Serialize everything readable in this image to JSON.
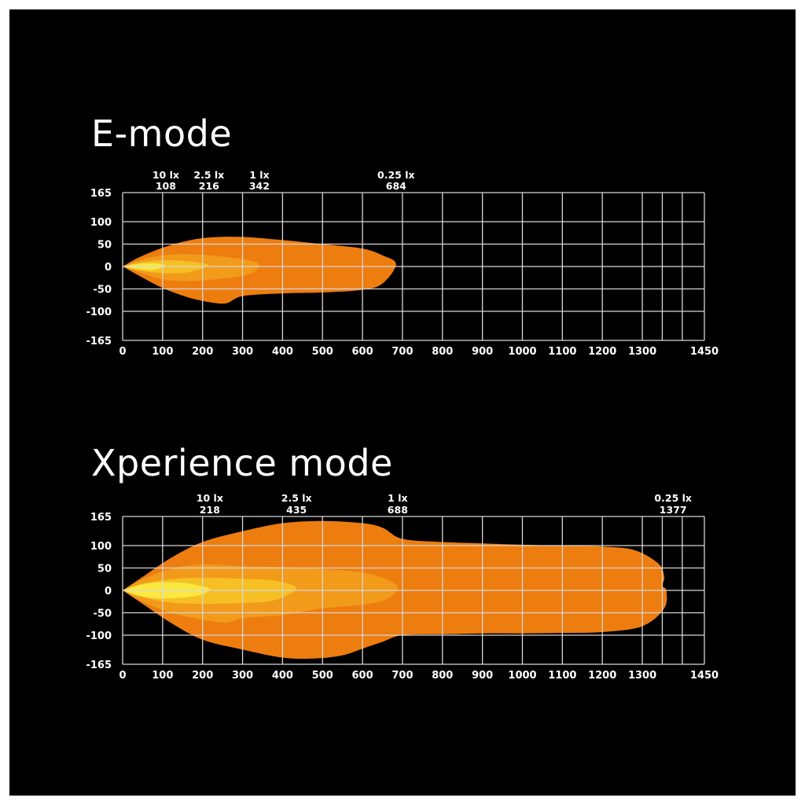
{
  "chart_data": [
    {
      "type": "area",
      "title": "E-mode",
      "xlim": [
        0,
        1450
      ],
      "ylim": [
        -165,
        165
      ],
      "x_ticks": [
        0,
        100,
        200,
        300,
        400,
        500,
        600,
        700,
        800,
        900,
        1000,
        1100,
        1200,
        1300,
        1450
      ],
      "y_ticks": [
        165,
        100,
        50,
        0,
        -50,
        -100,
        -165
      ],
      "grid": true,
      "lux_markers": [
        {
          "lux": "10 lx",
          "distance": "108",
          "x": 108
        },
        {
          "lux": "2.5 lx",
          "distance": "216",
          "x": 216
        },
        {
          "lux": "1 lx",
          "distance": "342",
          "x": 342
        },
        {
          "lux": "0.25 lx",
          "distance": "684",
          "x": 684
        }
      ],
      "zones": [
        {
          "level": "0.25 lx",
          "color": "#ee7d10",
          "top": [
            [
              0,
              0
            ],
            [
              40,
              20
            ],
            [
              100,
              42
            ],
            [
              160,
              57
            ],
            [
              220,
              65
            ],
            [
              300,
              66
            ],
            [
              400,
              59
            ],
            [
              500,
              50
            ],
            [
              600,
              40
            ],
            [
              650,
              25
            ],
            [
              684,
              5
            ]
          ],
          "bottom": [
            [
              0,
              0
            ],
            [
              40,
              -20
            ],
            [
              100,
              -48
            ],
            [
              160,
              -68
            ],
            [
              220,
              -80
            ],
            [
              260,
              -82
            ],
            [
              300,
              -66
            ],
            [
              400,
              -60
            ],
            [
              500,
              -58
            ],
            [
              600,
              -52
            ],
            [
              650,
              -38
            ],
            [
              684,
              -8
            ]
          ]
        },
        {
          "level": "1 lx",
          "color": "#f29a1a",
          "top": [
            [
              0,
              0
            ],
            [
              50,
              16
            ],
            [
              110,
              26
            ],
            [
              180,
              27
            ],
            [
              260,
              21
            ],
            [
              320,
              13
            ],
            [
              342,
              3
            ]
          ],
          "bottom": [
            [
              0,
              0
            ],
            [
              50,
              -16
            ],
            [
              110,
              -30
            ],
            [
              180,
              -32
            ],
            [
              260,
              -26
            ],
            [
              320,
              -16
            ],
            [
              342,
              -3
            ]
          ]
        },
        {
          "level": "2.5 lx",
          "color": "#f6c024",
          "top": [
            [
              0,
              0
            ],
            [
              50,
              10
            ],
            [
              110,
              14
            ],
            [
              170,
              11
            ],
            [
              216,
              3
            ]
          ],
          "bottom": [
            [
              0,
              0
            ],
            [
              50,
              -10
            ],
            [
              110,
              -15
            ],
            [
              170,
              -12
            ],
            [
              216,
              -3
            ]
          ]
        },
        {
          "level": "10 lx",
          "color": "#fbe840",
          "top": [
            [
              0,
              0
            ],
            [
              40,
              6
            ],
            [
              80,
              7
            ],
            [
              108,
              2
            ]
          ],
          "bottom": [
            [
              0,
              0
            ],
            [
              40,
              -6
            ],
            [
              80,
              -7
            ],
            [
              108,
              -2
            ]
          ]
        }
      ]
    },
    {
      "type": "area",
      "title": "Xperience mode",
      "xlim": [
        0,
        1450
      ],
      "ylim": [
        -165,
        165
      ],
      "x_ticks": [
        0,
        100,
        200,
        300,
        400,
        500,
        600,
        700,
        800,
        900,
        1000,
        1100,
        1200,
        1300,
        1450
      ],
      "y_ticks": [
        165,
        100,
        50,
        0,
        -50,
        -100,
        -165
      ],
      "grid": true,
      "lux_markers": [
        {
          "lux": "10 lx",
          "distance": "218",
          "x": 218
        },
        {
          "lux": "2.5 lx",
          "distance": "435",
          "x": 435
        },
        {
          "lux": "1 lx",
          "distance": "688",
          "x": 688
        },
        {
          "lux": "0.25 lx",
          "distance": "1377",
          "x": 1377
        }
      ],
      "zones": [
        {
          "level": "0.25 lx",
          "color": "#ee7d10",
          "top": [
            [
              0,
              0
            ],
            [
              50,
              30
            ],
            [
              120,
              72
            ],
            [
              200,
              108
            ],
            [
              300,
              132
            ],
            [
              400,
              150
            ],
            [
              500,
              155
            ],
            [
              600,
              150
            ],
            [
              650,
              140
            ],
            [
              700,
              115
            ],
            [
              800,
              108
            ],
            [
              900,
              105
            ],
            [
              1000,
              102
            ],
            [
              1100,
              100
            ],
            [
              1200,
              98
            ],
            [
              1280,
              90
            ],
            [
              1340,
              60
            ],
            [
              1355,
              30
            ],
            [
              1350,
              10
            ],
            [
              1360,
              0
            ]
          ],
          "bottom": [
            [
              0,
              0
            ],
            [
              50,
              -30
            ],
            [
              120,
              -72
            ],
            [
              200,
              -110
            ],
            [
              300,
              -132
            ],
            [
              400,
              -150
            ],
            [
              480,
              -152
            ],
            [
              550,
              -145
            ],
            [
              600,
              -130
            ],
            [
              650,
              -115
            ],
            [
              700,
              -100
            ],
            [
              800,
              -98
            ],
            [
              900,
              -96
            ],
            [
              1000,
              -96
            ],
            [
              1100,
              -95
            ],
            [
              1200,
              -93
            ],
            [
              1300,
              -80
            ],
            [
              1355,
              -40
            ],
            [
              1360,
              0
            ]
          ]
        },
        {
          "level": "1 lx",
          "color": "#f29a1a",
          "top": [
            [
              0,
              0
            ],
            [
              50,
              25
            ],
            [
              120,
              48
            ],
            [
              200,
              58
            ],
            [
              300,
              54
            ],
            [
              400,
              52
            ],
            [
              500,
              48
            ],
            [
              600,
              40
            ],
            [
              660,
              25
            ],
            [
              688,
              6
            ]
          ],
          "bottom": [
            [
              0,
              0
            ],
            [
              50,
              -25
            ],
            [
              120,
              -50
            ],
            [
              200,
              -65
            ],
            [
              260,
              -72
            ],
            [
              300,
              -62
            ],
            [
              400,
              -55
            ],
            [
              500,
              -40
            ],
            [
              600,
              -32
            ],
            [
              660,
              -20
            ],
            [
              688,
              -6
            ]
          ]
        },
        {
          "level": "2.5 lx",
          "color": "#f6c024",
          "top": [
            [
              0,
              0
            ],
            [
              50,
              15
            ],
            [
              120,
              25
            ],
            [
              200,
              28
            ],
            [
              300,
              26
            ],
            [
              380,
              22
            ],
            [
              435,
              5
            ]
          ],
          "bottom": [
            [
              0,
              0
            ],
            [
              50,
              -15
            ],
            [
              120,
              -27
            ],
            [
              200,
              -30
            ],
            [
              300,
              -28
            ],
            [
              380,
              -22
            ],
            [
              435,
              -5
            ]
          ]
        },
        {
          "level": "10 lx",
          "color": "#fbe840",
          "top": [
            [
              0,
              0
            ],
            [
              40,
              12
            ],
            [
              90,
              18
            ],
            [
              150,
              17
            ],
            [
              195,
              10
            ],
            [
              218,
              2
            ]
          ],
          "bottom": [
            [
              0,
              0
            ],
            [
              40,
              -12
            ],
            [
              90,
              -18
            ],
            [
              150,
              -16
            ],
            [
              195,
              -10
            ],
            [
              218,
              -2
            ]
          ]
        }
      ]
    }
  ]
}
